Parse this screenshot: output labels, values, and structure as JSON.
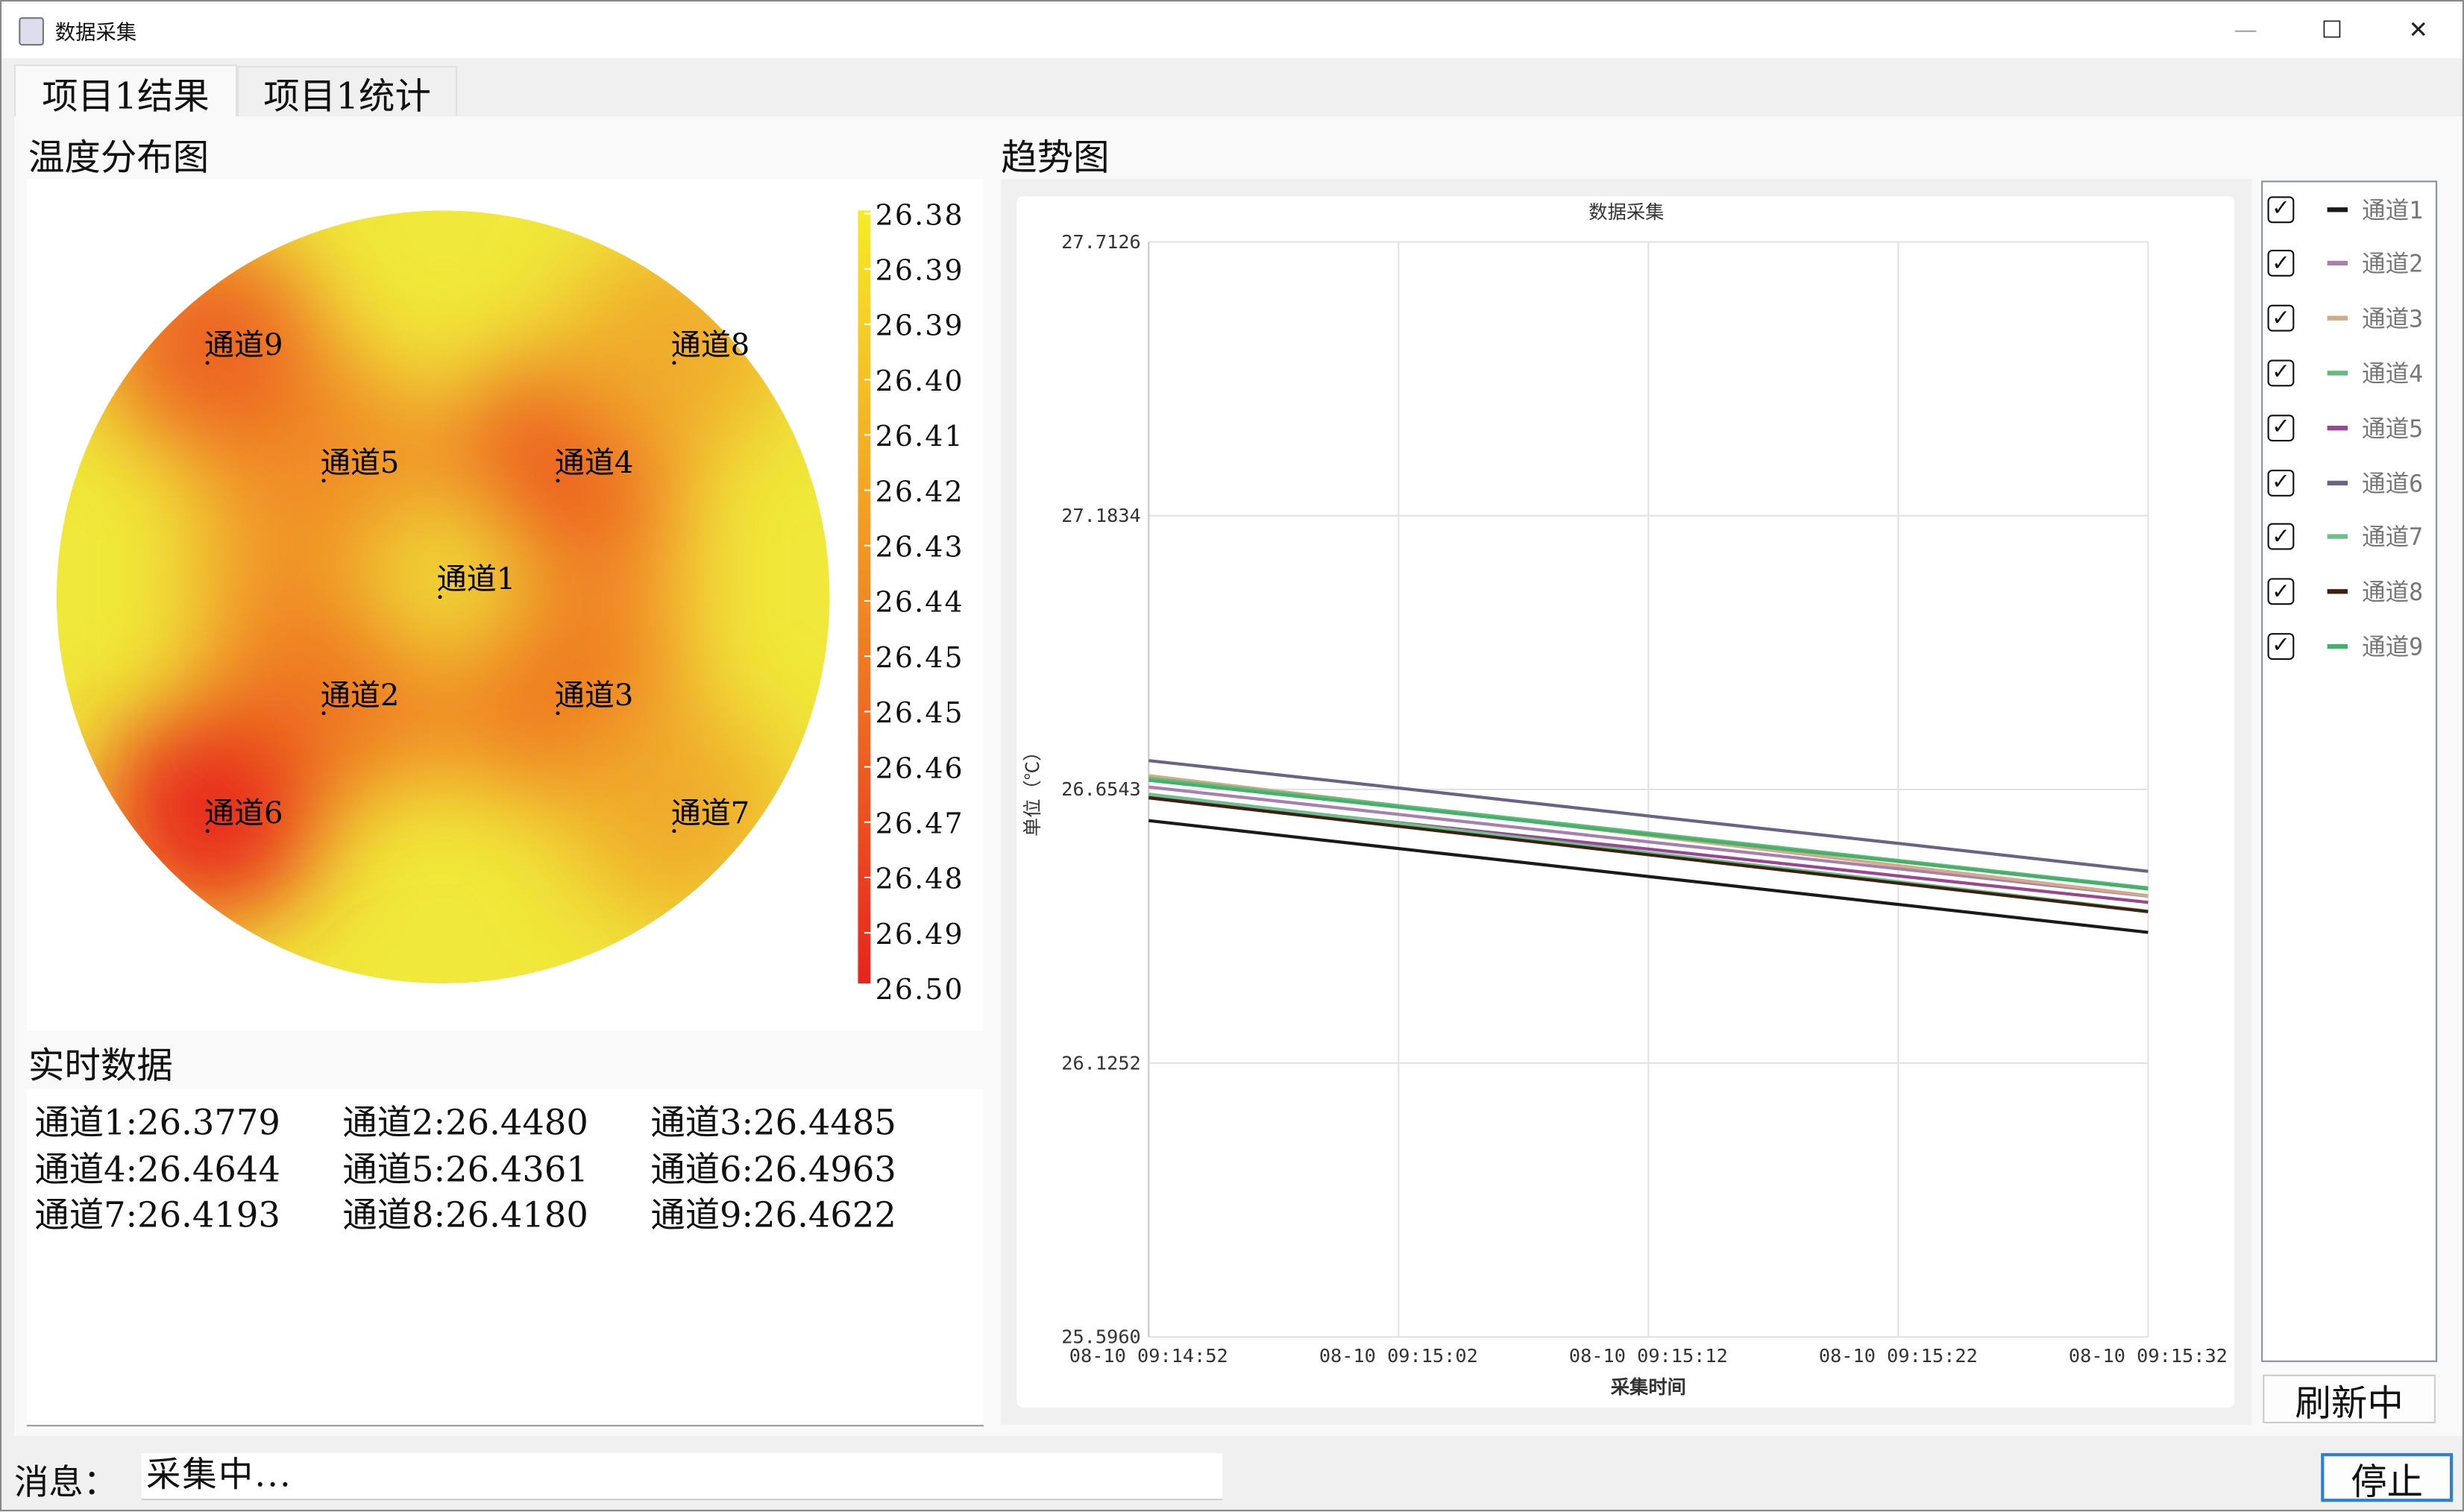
{
  "window": {
    "title": "数据采集",
    "minimize": "—",
    "maximize": "☐",
    "close": "✕"
  },
  "tabs": [
    {
      "label": "项目1结果",
      "selected": true
    },
    {
      "label": "项目1统计",
      "selected": false
    }
  ],
  "heatmap": {
    "title": "温度分布图",
    "channels": [
      {
        "label": "通道1",
        "value": 26.3779
      },
      {
        "label": "通道2",
        "value": 26.448
      },
      {
        "label": "通道3",
        "value": 26.4485
      },
      {
        "label": "通道4",
        "value": 26.4644
      },
      {
        "label": "通道5",
        "value": 26.4361
      },
      {
        "label": "通道6",
        "value": 26.4963
      },
      {
        "label": "通道7",
        "value": 26.4193
      },
      {
        "label": "通道8",
        "value": 26.418
      },
      {
        "label": "通道9",
        "value": 26.4622
      }
    ],
    "colorbar_labels": [
      "26.38",
      "26.39",
      "26.39",
      "26.40",
      "26.41",
      "26.42",
      "26.43",
      "26.44",
      "26.45",
      "26.45",
      "26.46",
      "26.47",
      "26.48",
      "26.49",
      "26.50"
    ],
    "colors": {
      "low": "#f0e83a",
      "high": "#e8241e"
    }
  },
  "realtime": {
    "title": "实时数据",
    "rows": [
      [
        "通道1:26.3779",
        "通道2:26.4480",
        "通道3:26.4485"
      ],
      [
        "通道4:26.4644",
        "通道5:26.4361",
        "通道6:26.4963"
      ],
      [
        "通道7:26.4193",
        "通道8:26.4180",
        "通道9:26.4622"
      ]
    ]
  },
  "trend": {
    "title": "趋势图"
  },
  "chart_data": {
    "type": "line",
    "title": "数据采集",
    "xlabel": "采集时间",
    "ylabel": "单位（℃）",
    "x": [
      "08-10 09:14:52",
      "08-10 09:15:02",
      "08-10 09:15:12",
      "08-10 09:15:22",
      "08-10 09:15:32"
    ],
    "yticks": [
      "27.7126",
      "27.1834",
      "26.6543",
      "26.1252",
      "25.5960"
    ],
    "ylim": [
      25.596,
      27.7126
    ],
    "grid": true,
    "series": [
      {
        "name": "通道1",
        "color": "#1a1a1a",
        "values": [
          26.594,
          26.54,
          26.486,
          26.432,
          26.378
        ]
      },
      {
        "name": "通道2",
        "color": "#a77fb0",
        "values": [
          26.659,
          26.606,
          26.553,
          26.501,
          26.448
        ]
      },
      {
        "name": "通道3",
        "color": "#d2ab88",
        "values": [
          26.681,
          26.623,
          26.565,
          26.507,
          26.449
        ]
      },
      {
        "name": "通道4",
        "color": "#62bd7a",
        "values": [
          26.676,
          26.623,
          26.57,
          26.517,
          26.464
        ]
      },
      {
        "name": "通道5",
        "color": "#9b4595",
        "values": [
          26.642,
          26.59,
          26.539,
          26.487,
          26.436
        ]
      },
      {
        "name": "通道6",
        "color": "#6a6385",
        "values": [
          26.71,
          26.657,
          26.603,
          26.55,
          26.496
        ]
      },
      {
        "name": "通道7",
        "color": "#6cc08d",
        "values": [
          26.645,
          26.589,
          26.532,
          26.476,
          26.419
        ]
      },
      {
        "name": "通道8",
        "color": "#3f1f12",
        "values": [
          26.638,
          26.583,
          26.528,
          26.473,
          26.418
        ]
      },
      {
        "name": "通道9",
        "color": "#45b06c",
        "values": [
          26.672,
          26.62,
          26.567,
          26.515,
          26.462
        ]
      }
    ]
  },
  "legend": {
    "checked": "✓"
  },
  "buttons": {
    "refresh": "刷新中",
    "stop": "停止"
  },
  "message": {
    "label": "消息：",
    "value": "采集中..."
  }
}
